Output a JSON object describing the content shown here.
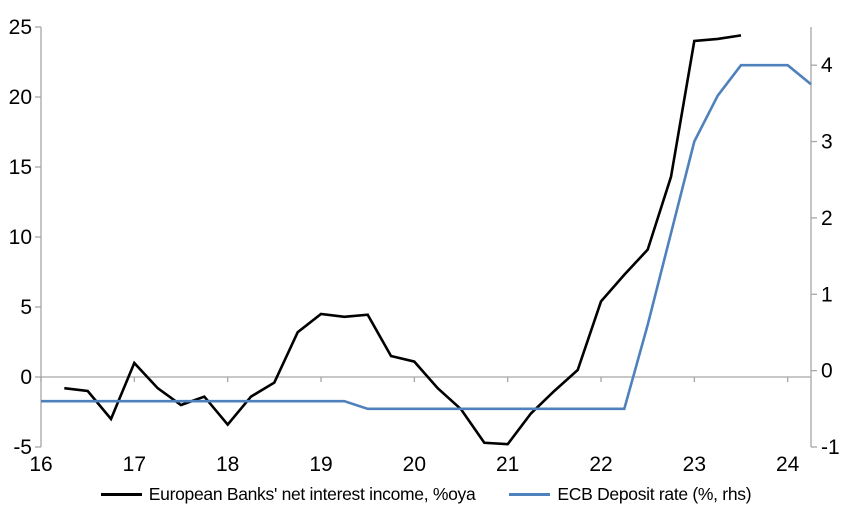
{
  "chart_data": {
    "type": "line",
    "title": "",
    "x_axis": {
      "min": 16,
      "max": 24.25,
      "tick_values": [
        16,
        17,
        18,
        19,
        20,
        21,
        22,
        23,
        24
      ],
      "tick_labels": [
        "16",
        "17",
        "18",
        "19",
        "20",
        "21",
        "22",
        "23",
        "24"
      ]
    },
    "y_axis_left": {
      "min": -5,
      "max": 25,
      "tick_values": [
        -5,
        0,
        5,
        10,
        15,
        20,
        25
      ],
      "tick_labels": [
        "-5",
        "0",
        "5",
        "10",
        "15",
        "20",
        "25"
      ]
    },
    "y_axis_right": {
      "min": -1,
      "max": 4.5,
      "tick_values": [
        -1,
        0,
        1,
        2,
        3,
        4
      ],
      "tick_labels": [
        "-1",
        "0",
        "1",
        "2",
        "3",
        "4"
      ]
    },
    "grid": false,
    "zero_line": true,
    "legend_position": "bottom",
    "colors": {
      "axis": "#a6a6a6",
      "text": "#000000",
      "series_nii": "#000000",
      "series_ecb": "#4f81bd"
    },
    "series": [
      {
        "name": "European Banks' net interest income, %oya",
        "axis": "left",
        "color": "#000000",
        "x": [
          16.25,
          16.5,
          16.75,
          17.0,
          17.25,
          17.5,
          17.75,
          18.0,
          18.25,
          18.5,
          18.75,
          19.0,
          19.25,
          19.5,
          19.75,
          20.0,
          20.25,
          20.5,
          20.75,
          21.0,
          21.25,
          21.5,
          21.75,
          22.0,
          22.25,
          22.5,
          22.75,
          23.0,
          23.25,
          23.5
        ],
        "values": [
          -0.8,
          -1.0,
          -3.0,
          1.0,
          -0.8,
          -2.0,
          -1.4,
          -3.4,
          -1.4,
          -0.4,
          3.2,
          4.5,
          4.3,
          4.45,
          1.5,
          1.1,
          -0.8,
          -2.3,
          -4.7,
          -4.8,
          -2.6,
          -1.0,
          0.5,
          5.4,
          7.3,
          9.1,
          14.3,
          24.0,
          24.15,
          24.4
        ]
      },
      {
        "name": "ECB Deposit rate (%, rhs)",
        "axis": "right",
        "color": "#4f81bd",
        "x": [
          16.0,
          16.25,
          16.5,
          16.75,
          17.0,
          17.25,
          17.5,
          17.75,
          18.0,
          18.25,
          18.5,
          18.75,
          19.0,
          19.25,
          19.5,
          19.75,
          20.0,
          20.25,
          20.5,
          20.75,
          21.0,
          21.25,
          21.5,
          21.75,
          22.0,
          22.25,
          22.5,
          22.75,
          23.0,
          23.25,
          23.5,
          23.75,
          24.0,
          24.25
        ],
        "values": [
          -0.4,
          -0.4,
          -0.4,
          -0.4,
          -0.4,
          -0.4,
          -0.4,
          -0.4,
          -0.4,
          -0.4,
          -0.4,
          -0.4,
          -0.4,
          -0.4,
          -0.5,
          -0.5,
          -0.5,
          -0.5,
          -0.5,
          -0.5,
          -0.5,
          -0.5,
          -0.5,
          -0.5,
          -0.5,
          -0.5,
          0.6,
          1.8,
          3.0,
          3.6,
          4.0,
          4.0,
          4.0,
          3.75
        ]
      }
    ]
  },
  "legend": {
    "items": [
      {
        "label": "European Banks' net interest income, %oya"
      },
      {
        "label": "ECB Deposit rate (%, rhs)"
      }
    ]
  }
}
